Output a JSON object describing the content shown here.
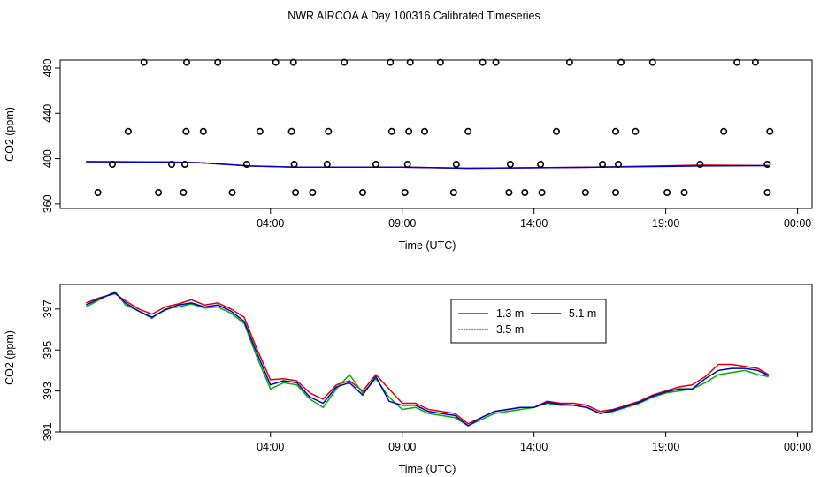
{
  "title": "NWR AIRCOA A  Day 100316  Calibrated Timeseries",
  "colors": {
    "h13": "#e00000",
    "h35": "#00b000",
    "h51": "#0000cc",
    "axis": "#000000"
  },
  "chart_data": [
    {
      "type": "scatter",
      "xlabel": "Time (UTC)",
      "ylabel": "CO2 (ppm)",
      "xlim": [
        -3.98,
        24.55
      ],
      "ylim": [
        356,
        487
      ],
      "x_ticks": [
        4,
        9,
        14,
        19,
        24
      ],
      "x_tick_labels": [
        "04:00",
        "09:00",
        "14:00",
        "19:00",
        "00:00"
      ],
      "y_ticks": [
        360,
        400,
        440,
        480
      ],
      "y_tick_labels": [
        "360",
        "400",
        "440",
        "480"
      ],
      "points": [
        [
          -2.55,
          370
        ],
        [
          -2.0,
          395
        ],
        [
          -1.4,
          424
        ],
        [
          -0.8,
          485
        ],
        [
          -0.25,
          370
        ],
        [
          0.25,
          395
        ],
        [
          0.7,
          370
        ],
        [
          0.75,
          395
        ],
        [
          0.8,
          424
        ],
        [
          0.82,
          485
        ],
        [
          1.45,
          424
        ],
        [
          2.0,
          485
        ],
        [
          2.55,
          370
        ],
        [
          3.1,
          395
        ],
        [
          3.6,
          424
        ],
        [
          4.2,
          485
        ],
        [
          4.8,
          424
        ],
        [
          4.87,
          485
        ],
        [
          4.9,
          395
        ],
        [
          4.95,
          370
        ],
        [
          5.6,
          370
        ],
        [
          6.15,
          395
        ],
        [
          6.2,
          424
        ],
        [
          6.8,
          485
        ],
        [
          7.5,
          370
        ],
        [
          8.0,
          395
        ],
        [
          8.55,
          485
        ],
        [
          8.6,
          424
        ],
        [
          9.1,
          370
        ],
        [
          9.2,
          395
        ],
        [
          9.25,
          424
        ],
        [
          9.3,
          485
        ],
        [
          9.85,
          424
        ],
        [
          10.45,
          485
        ],
        [
          10.95,
          370
        ],
        [
          11.05,
          395
        ],
        [
          11.5,
          424
        ],
        [
          12.05,
          485
        ],
        [
          12.55,
          485
        ],
        [
          13.05,
          370
        ],
        [
          13.1,
          395
        ],
        [
          13.65,
          370
        ],
        [
          14.25,
          395
        ],
        [
          14.3,
          370
        ],
        [
          14.85,
          424
        ],
        [
          15.35,
          485
        ],
        [
          15.95,
          370
        ],
        [
          16.6,
          395
        ],
        [
          17.1,
          370
        ],
        [
          17.1,
          424
        ],
        [
          17.2,
          395
        ],
        [
          17.3,
          485
        ],
        [
          17.85,
          424
        ],
        [
          18.5,
          485
        ],
        [
          19.05,
          370
        ],
        [
          19.7,
          370
        ],
        [
          20.3,
          395
        ],
        [
          21.2,
          424
        ],
        [
          21.7,
          485
        ],
        [
          22.4,
          485
        ],
        [
          22.85,
          370
        ],
        [
          22.85,
          395
        ],
        [
          22.95,
          424
        ]
      ],
      "series": [
        {
          "name": "1.3 m",
          "color": "#e00000",
          "x": [
            -3.0,
            0,
            1.3,
            3.2,
            5,
            9,
            11.5,
            16,
            20.4,
            22.9
          ],
          "values": [
            397.3,
            397.0,
            396.5,
            393.5,
            392.4,
            392.5,
            391.5,
            392.3,
            394.3,
            393.8
          ]
        },
        {
          "name": "5.1 m",
          "color": "#0000cc",
          "x": [
            -3.0,
            0,
            1.3,
            3.2,
            5,
            9,
            11.5,
            16,
            20.4,
            22.9
          ],
          "values": [
            397.3,
            397.0,
            396.5,
            393.5,
            392.4,
            392.5,
            391.5,
            392.3,
            393.5,
            393.8
          ]
        }
      ]
    },
    {
      "type": "line",
      "xlabel": "Time (UTC)",
      "ylabel": "CO2 (ppm)",
      "xlim": [
        -3.98,
        24.55
      ],
      "ylim": [
        391,
        398.2
      ],
      "x_ticks": [
        4,
        9,
        14,
        19,
        24
      ],
      "x_tick_labels": [
        "04:00",
        "09:00",
        "14:00",
        "19:00",
        "00:00"
      ],
      "y_ticks": [
        391,
        393,
        395,
        397
      ],
      "y_tick_labels": [
        "391",
        "393",
        "395",
        "397"
      ],
      "legend": {
        "position": "top-center",
        "entries": [
          "1.3 m",
          "5.1 m",
          "3.5 m"
        ]
      },
      "series": [
        {
          "name": "1.3 m",
          "color": "#e00000",
          "x": [
            -3.0,
            -2.5,
            -1.9,
            -1.5,
            -1.0,
            -0.5,
            0.0,
            0.5,
            1.0,
            1.5,
            2.0,
            2.5,
            3.0,
            3.5,
            4.0,
            4.5,
            5.0,
            5.5,
            6.0,
            6.5,
            7.0,
            7.5,
            8.0,
            8.5,
            9.0,
            9.5,
            10.0,
            10.5,
            11.0,
            11.5,
            12.0,
            12.5,
            13.0,
            13.5,
            14.0,
            14.5,
            15.0,
            15.5,
            16.0,
            16.5,
            17.0,
            17.5,
            18.0,
            18.5,
            19.0,
            19.5,
            20.0,
            20.5,
            21.0,
            21.5,
            22.0,
            22.5,
            22.9
          ],
          "values": [
            397.3,
            397.55,
            397.75,
            397.4,
            397.0,
            396.75,
            397.1,
            397.25,
            397.45,
            397.2,
            397.3,
            397.0,
            396.6,
            395.0,
            393.55,
            393.6,
            393.5,
            392.9,
            392.6,
            393.3,
            393.5,
            393.0,
            393.8,
            393.1,
            392.4,
            392.4,
            392.1,
            392.0,
            391.9,
            391.4,
            391.7,
            392.0,
            392.1,
            392.2,
            392.2,
            392.5,
            392.4,
            392.4,
            392.3,
            392.0,
            392.1,
            392.3,
            392.5,
            392.8,
            393.0,
            393.2,
            393.3,
            393.7,
            394.3,
            394.3,
            394.2,
            394.1,
            393.8
          ]
        },
        {
          "name": "3.5 m",
          "color": "#00b000",
          "x": [
            -3.0,
            -2.5,
            -1.9,
            -1.5,
            -1.0,
            -0.5,
            0.0,
            0.5,
            1.0,
            1.5,
            2.0,
            2.5,
            3.0,
            3.5,
            4.0,
            4.5,
            5.0,
            5.5,
            6.0,
            6.5,
            7.0,
            7.5,
            8.0,
            8.5,
            9.0,
            9.5,
            10.0,
            10.5,
            11.0,
            11.5,
            12.0,
            12.5,
            13.0,
            13.5,
            14.0,
            14.5,
            15.0,
            15.5,
            16.0,
            16.5,
            17.0,
            17.5,
            18.0,
            18.5,
            19.0,
            19.5,
            20.0,
            20.5,
            21.0,
            21.5,
            22.0,
            22.5,
            22.9
          ],
          "values": [
            397.1,
            397.45,
            397.85,
            397.2,
            396.9,
            396.55,
            397.0,
            397.1,
            397.25,
            397.05,
            397.1,
            396.8,
            396.3,
            394.6,
            393.1,
            393.4,
            393.3,
            392.6,
            392.2,
            393.1,
            393.8,
            392.9,
            393.6,
            392.7,
            392.1,
            392.2,
            391.9,
            391.8,
            391.7,
            391.3,
            391.6,
            391.9,
            392.0,
            392.1,
            392.2,
            392.4,
            392.3,
            392.3,
            392.2,
            391.9,
            392.0,
            392.2,
            392.4,
            392.7,
            392.9,
            393.0,
            393.1,
            393.4,
            393.8,
            393.9,
            394.0,
            393.8,
            393.7
          ]
        },
        {
          "name": "5.1 m",
          "color": "#0000cc",
          "x": [
            -3.0,
            -2.5,
            -1.9,
            -1.5,
            -1.0,
            -0.5,
            0.0,
            0.5,
            1.0,
            1.5,
            2.0,
            2.5,
            3.0,
            3.5,
            4.0,
            4.5,
            5.0,
            5.5,
            6.0,
            6.5,
            7.0,
            7.5,
            8.0,
            8.5,
            9.0,
            9.5,
            10.0,
            10.5,
            11.0,
            11.5,
            12.0,
            12.5,
            13.0,
            13.5,
            14.0,
            14.5,
            15.0,
            15.5,
            16.0,
            16.5,
            17.0,
            17.5,
            18.0,
            18.5,
            19.0,
            19.5,
            20.0,
            20.5,
            21.0,
            21.5,
            22.0,
            22.5,
            22.9
          ],
          "values": [
            397.2,
            397.5,
            397.8,
            397.3,
            396.9,
            396.6,
            396.95,
            397.2,
            397.3,
            397.1,
            397.2,
            396.9,
            396.4,
            394.8,
            393.3,
            393.5,
            393.4,
            392.7,
            392.4,
            393.2,
            393.4,
            392.8,
            393.7,
            392.5,
            392.3,
            392.3,
            392.0,
            391.9,
            391.8,
            391.3,
            391.7,
            392.0,
            392.1,
            392.2,
            392.2,
            392.45,
            392.35,
            392.3,
            392.2,
            391.9,
            392.05,
            392.25,
            392.45,
            392.75,
            392.95,
            393.1,
            393.1,
            393.6,
            394.0,
            394.1,
            394.1,
            394.0,
            393.75
          ]
        }
      ]
    }
  ]
}
